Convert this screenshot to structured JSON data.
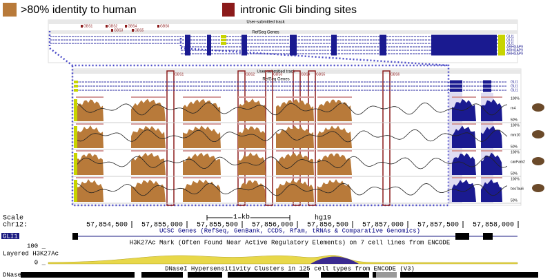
{
  "legend": {
    "identity": ">80% identity to human",
    "binding_sites": "intronic Gli binding sites"
  },
  "overview": {
    "track_title": "User-submitted track",
    "sites": [
      "GBS1",
      "GBS2",
      "GBS3",
      "GBS4",
      "GBS5",
      "GBS6"
    ],
    "genes_title": "RefSeq Genes",
    "gene_labels": [
      "GLI1",
      "GLI1",
      "GLI1",
      "ARHGAP9",
      "ARHGAP9",
      "ARHGAP9"
    ]
  },
  "detail": {
    "track_title": "User-submitted track",
    "sites": [
      "GBS1",
      "GBS2",
      "GBS3",
      "GBS4",
      "GBS5",
      "GBS6"
    ],
    "genes_title": "RefSeq Genes",
    "gene_labels": [
      "GLI1",
      "GLI1",
      "GLI1"
    ],
    "species": [
      "rn4",
      "mm10",
      "canFam2",
      "bosTau6"
    ],
    "top_label": "100%",
    "bottom_label": "50%"
  },
  "browser": {
    "scale_label": "Scale",
    "scale_bar": "1 kb",
    "assembly": "hg19",
    "chrom": "chr12:",
    "positions": [
      "57,854,500",
      "57,855,000",
      "57,855,500",
      "57,856,000",
      "57,856,500",
      "57,857,000",
      "57,857,500",
      "57,858,000"
    ],
    "genes_track": "UCSC Genes (RefSeq, GenBank, CCDS, Rfam, tRNAs & Comparative Genomics)",
    "gene": "GLI1",
    "h3k27ac_title": "H3K27Ac Mark (Often Found Near Active Regulatory Elements) on 7 cell lines from ENCODE",
    "h3k27ac_label": "Layered H3K27Ac",
    "h3k27ac_max": "100 _",
    "h3k27ac_min": "0 _",
    "dnase_title": "DNaseI Hypersensitivity Clusters in 125 cell types from ENCODE (V3)",
    "dnase_label": "DNase Clusters"
  }
}
